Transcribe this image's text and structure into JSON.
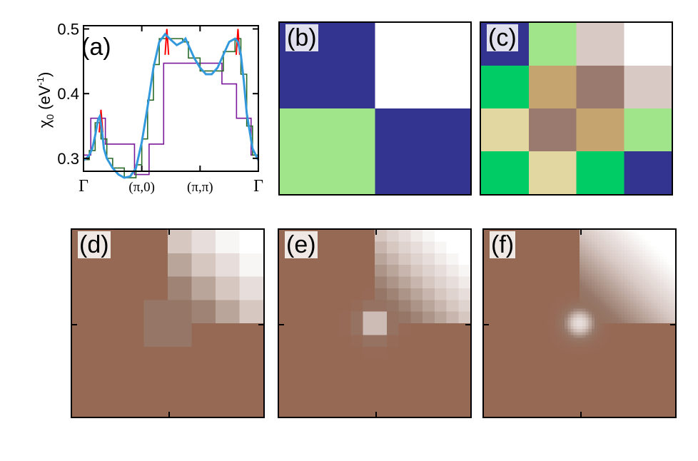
{
  "figure_panels": [
    {
      "id": "a",
      "label": "(a)"
    },
    {
      "id": "b",
      "label": "(b)"
    },
    {
      "id": "c",
      "label": "(c)"
    },
    {
      "id": "d",
      "label": "(d)"
    },
    {
      "id": "e",
      "label": "(e)"
    },
    {
      "id": "f",
      "label": "(f)"
    }
  ],
  "colors": {
    "navy": "#33348f",
    "white": "#ffffff",
    "light_green": "#a1e58a",
    "green": "#00cc66",
    "tan": "#c5a470",
    "brown": "#9a7a6e",
    "beige": "#e2d7a0",
    "pale_taupe": "#d9c9c5",
    "spike_red": "#ff0000",
    "curve_cyan": "#3399dd",
    "step_purple": "#7a1a9a",
    "step_darkgreen": "#2a6b2a"
  },
  "heatmap_ticks": {
    "e_top": "20",
    "e_mid": "10",
    "f_top": "20",
    "f_mid": "10"
  },
  "chart_data": [
    {
      "type": "line",
      "panel": "(a)",
      "ylabel": "χ0 (eV-1)",
      "ylabel_parts": {
        "chi": "χ",
        "sub": "0",
        "unit": " (eV",
        "sup": "-1",
        "close": ")"
      },
      "ylim": [
        0.28,
        0.505
      ],
      "yticks": [
        0.3,
        0.4,
        0.5
      ],
      "ytick_labels": [
        "0.3",
        "0.4",
        "0.5"
      ],
      "xticks": [
        0,
        1,
        2,
        3
      ],
      "xtick_labels": [
        "Γ",
        "(π,0)",
        "(π,π)",
        "Γ"
      ],
      "series": [
        {
          "color_key": "curve_cyan",
          "x": [
            0.0,
            0.05,
            0.1,
            0.15,
            0.2,
            0.25,
            0.28,
            0.32,
            0.35,
            0.4,
            0.5,
            0.6,
            0.7,
            0.8,
            0.9,
            1.0,
            1.1,
            1.2,
            1.3,
            1.4,
            1.5,
            1.6,
            1.7,
            1.75,
            1.8,
            1.9,
            2.0,
            2.1,
            2.2,
            2.3,
            2.4,
            2.5,
            2.6,
            2.65,
            2.7,
            2.75,
            2.8,
            2.9,
            3.0
          ],
          "y": [
            0.297,
            0.3,
            0.305,
            0.315,
            0.335,
            0.36,
            0.365,
            0.34,
            0.315,
            0.3,
            0.285,
            0.275,
            0.27,
            0.272,
            0.285,
            0.325,
            0.38,
            0.44,
            0.48,
            0.492,
            0.483,
            0.475,
            0.48,
            0.485,
            0.475,
            0.455,
            0.44,
            0.43,
            0.43,
            0.44,
            0.46,
            0.48,
            0.485,
            0.48,
            0.46,
            0.42,
            0.37,
            0.315,
            0.297
          ]
        },
        {
          "color_key": "step_purple",
          "x": [
            0.0,
            0.125,
            0.125,
            0.375,
            0.375,
            0.875,
            0.875,
            1.125,
            1.125,
            1.375,
            1.375,
            2.375,
            2.375,
            2.625,
            2.625,
            2.875,
            2.875,
            3.0
          ],
          "y": [
            0.305,
            0.305,
            0.362,
            0.362,
            0.322,
            0.322,
            0.275,
            0.275,
            0.322,
            0.322,
            0.447,
            0.447,
            0.415,
            0.415,
            0.362,
            0.362,
            0.305,
            0.305
          ]
        },
        {
          "color_key": "step_darkgreen",
          "x": [
            0.0,
            0.1,
            0.1,
            0.2,
            0.2,
            0.3,
            0.3,
            0.4,
            0.4,
            0.5,
            0.5,
            0.7,
            0.7,
            0.9,
            0.9,
            1.0,
            1.0,
            1.1,
            1.1,
            1.2,
            1.2,
            1.3,
            1.3,
            1.7,
            1.7,
            1.8,
            1.8,
            2.0,
            2.0,
            2.2,
            2.2,
            2.4,
            2.4,
            2.6,
            2.6,
            2.7,
            2.7,
            2.8,
            2.8,
            2.9,
            2.9,
            3.0
          ],
          "y": [
            0.298,
            0.298,
            0.312,
            0.312,
            0.355,
            0.355,
            0.33,
            0.33,
            0.3,
            0.3,
            0.285,
            0.285,
            0.27,
            0.27,
            0.29,
            0.29,
            0.33,
            0.33,
            0.39,
            0.39,
            0.445,
            0.445,
            0.485,
            0.485,
            0.48,
            0.48,
            0.455,
            0.455,
            0.435,
            0.435,
            0.435,
            0.435,
            0.465,
            0.465,
            0.485,
            0.485,
            0.43,
            0.43,
            0.35,
            0.35,
            0.305,
            0.305
          ]
        },
        {
          "color_key": "spike_red",
          "x": [
            0.27,
            0.3,
            0.33,
            1.4,
            1.43,
            1.46,
            2.62,
            2.65,
            2.68
          ],
          "y": [
            0.34,
            0.375,
            0.34,
            0.46,
            0.5,
            0.46,
            0.46,
            0.5,
            0.46
          ],
          "note_segments": [
            [
              0,
              2
            ],
            [
              3,
              5
            ],
            [
              6,
              8
            ]
          ]
        }
      ]
    },
    {
      "type": "heatmap",
      "panel": "(b)",
      "rows": 2,
      "cols": 2,
      "cells": [
        [
          "navy",
          "white"
        ],
        [
          "light_green",
          "navy"
        ]
      ]
    },
    {
      "type": "heatmap",
      "panel": "(c)",
      "rows": 4,
      "cols": 4,
      "cells": [
        [
          "navy",
          "light_green",
          "pale_taupe",
          "white"
        ],
        [
          "green",
          "tan",
          "brown",
          "pale_taupe"
        ],
        [
          "beige",
          "brown",
          "tan",
          "light_green"
        ],
        [
          "green",
          "beige",
          "green",
          "navy"
        ]
      ]
    },
    {
      "type": "heatmap",
      "panel": "(d)",
      "rows": 8,
      "cols": 8,
      "generated": "saddle",
      "peak_offset": [
        2,
        2
      ]
    },
    {
      "type": "heatmap",
      "panel": "(e)",
      "rows": 16,
      "cols": 16,
      "generated": "saddle",
      "peak_offset": [
        4.5,
        4.5
      ],
      "ticks": [
        "20",
        "10"
      ]
    },
    {
      "type": "heatmap",
      "panel": "(f)",
      "rows": 64,
      "cols": 64,
      "generated": "saddle",
      "peak_offset": [
        18,
        18
      ],
      "ticks": [
        "20",
        "10"
      ]
    }
  ]
}
